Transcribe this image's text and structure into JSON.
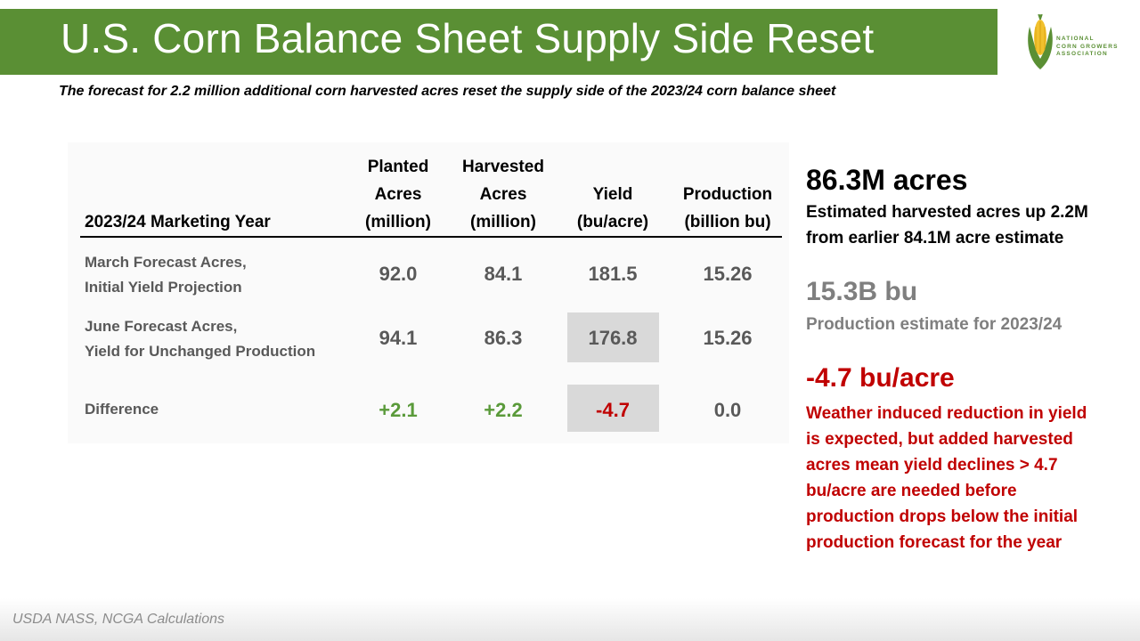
{
  "header": {
    "title": "U.S. Corn Balance Sheet Supply Side Reset",
    "accent_color": "#5a8f34"
  },
  "logo": {
    "icon": "corn-icon",
    "lines": [
      "NATIONAL",
      "CORN GROWERS",
      "ASSOCIATION"
    ]
  },
  "subtitle": "The forecast for 2.2 million additional corn harvested acres reset the supply side of the 2023/24 corn balance sheet",
  "table": {
    "row_header": "2023/24 Marketing Year",
    "columns": [
      [
        "Planted",
        "Acres",
        "(million)"
      ],
      [
        "Harvested",
        "Acres",
        "(million)"
      ],
      [
        "Yield",
        "(bu/acre)"
      ],
      [
        "Production",
        "(billion bu)"
      ]
    ],
    "rows": [
      {
        "label": [
          "March Forecast Acres,",
          "Initial Yield Projection"
        ],
        "values": [
          "92.0",
          "84.1",
          "181.5",
          "15.26"
        ]
      },
      {
        "label": [
          "June Forecast Acres,",
          "Yield for Unchanged Production"
        ],
        "values": [
          "94.1",
          "86.3",
          "176.8",
          "15.26"
        ]
      },
      {
        "label": [
          "Difference"
        ],
        "values": [
          "+2.1",
          "+2.2",
          "-4.7",
          "0.0"
        ]
      }
    ],
    "positive_color": "#5a9a3a",
    "negative_color": "#c00000",
    "highlight_color": "#d9d9d9"
  },
  "stats": [
    {
      "value": "86.3M acres",
      "description": [
        "Estimated harvested acres up 2.2M",
        "from earlier 84.1M acre estimate"
      ],
      "color": "#000000"
    },
    {
      "value": "15.3B bu",
      "description": [
        "Production estimate for 2023/24"
      ],
      "color": "#7f7f7f"
    },
    {
      "value": "-4.7 bu/acre",
      "description": [
        "Weather induced reduction in yield",
        "is expected, but added harvested",
        "acres mean yield declines > 4.7",
        "bu/acre are needed before",
        "production drops below the initial",
        "production forecast for the year"
      ],
      "color": "#c00000"
    }
  ],
  "source": "USDA NASS, NCGA Calculations"
}
